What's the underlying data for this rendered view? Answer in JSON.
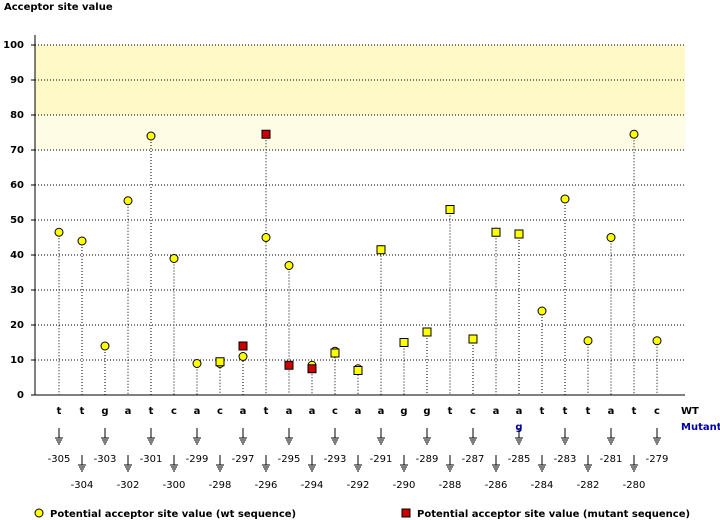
{
  "chart_data": {
    "type": "lollipop",
    "y_label": "Acceptor site value",
    "categories": [
      "-305",
      "-304",
      "-303",
      "-302",
      "-301",
      "-300",
      "-299",
      "-298",
      "-297",
      "-296",
      "-295",
      "-294",
      "-293",
      "-292",
      "-291",
      "-290",
      "-289",
      "-288",
      "-287",
      "-286",
      "-285",
      "-284",
      "-283",
      "-282",
      "-281",
      "-280",
      "-279"
    ],
    "wt_label": "WT",
    "mutant_label": "Mutant",
    "wt_sequence": [
      "t",
      "t",
      "g",
      "a",
      "t",
      "c",
      "a",
      "c",
      "a",
      "t",
      "a",
      "a",
      "c",
      "a",
      "a",
      "g",
      "g",
      "t",
      "c",
      "a",
      "a",
      "t",
      "t",
      "t",
      "a",
      "t",
      "c"
    ],
    "mutant_sequence": [
      null,
      null,
      null,
      null,
      null,
      null,
      null,
      null,
      null,
      null,
      null,
      null,
      null,
      null,
      null,
      null,
      null,
      null,
      null,
      null,
      "g",
      null,
      null,
      null,
      null,
      null,
      null
    ],
    "series": [
      {
        "name": "Potential acceptor site value (wt sequence)",
        "color": "#ffff00",
        "marker": "circle",
        "values": [
          46.5,
          44,
          14,
          55.5,
          74,
          39,
          9,
          9,
          11,
          45,
          37,
          8.5,
          12.5,
          7.5,
          41.5,
          15,
          18,
          53,
          16,
          46.5,
          46,
          24,
          56,
          15.5,
          45,
          74.5,
          15.5
        ]
      },
      {
        "name": "Potential acceptor site value (mutant sequence)",
        "color": "#cc0000",
        "marker": "square",
        "values": [
          null,
          null,
          null,
          null,
          null,
          null,
          null,
          9.5,
          14,
          74.5,
          8.5,
          7.5,
          12,
          7,
          41.5,
          15,
          18,
          53,
          16,
          46.5,
          46,
          null,
          null,
          null,
          null,
          null,
          null
        ],
        "point_colors": [
          null,
          null,
          null,
          null,
          null,
          null,
          null,
          "#ffff00",
          "#cc0000",
          "#cc0000",
          "#cc0000",
          "#cc0000",
          "#ffff00",
          "#ffff00",
          "#ffff00",
          "#ffff00",
          "#ffff00",
          "#ffff00",
          "#ffff00",
          "#ffff00",
          "#ffff00",
          null,
          null,
          null,
          null,
          null,
          null
        ]
      }
    ],
    "bands": [
      {
        "from": 80,
        "to": 100,
        "color": "#fff9c8"
      },
      {
        "from": 70,
        "to": 80,
        "color": "#fffce6"
      }
    ],
    "ylim": [
      0,
      100
    ],
    "yticks": [
      0,
      10,
      20,
      30,
      40,
      50,
      60,
      70,
      80,
      90,
      100
    ],
    "grid": true
  }
}
